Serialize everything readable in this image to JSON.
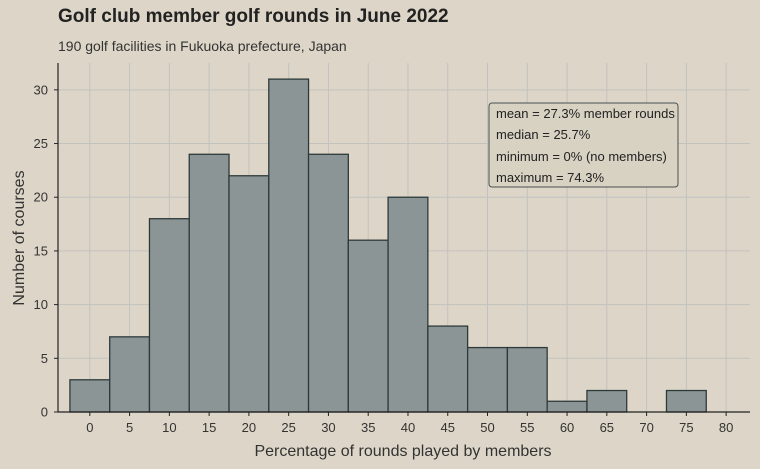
{
  "chart_data": {
    "type": "bar",
    "title": "Golf club member golf rounds in June 2022",
    "subtitle": "190 golf facilities in Fukuoka prefecture, Japan",
    "xlabel": "Percentage of rounds played by members",
    "ylabel": "Number of courses",
    "bin_width": 5,
    "bin_centers": [
      0,
      5,
      10,
      15,
      20,
      25,
      30,
      35,
      40,
      45,
      50,
      55,
      60,
      65,
      70,
      75
    ],
    "values": [
      3,
      7,
      18,
      24,
      22,
      31,
      24,
      16,
      20,
      8,
      6,
      6,
      1,
      2,
      0,
      2
    ],
    "xlim": [
      -4,
      83
    ],
    "ylim": [
      0,
      32.5
    ],
    "x_ticks": [
      0,
      5,
      10,
      15,
      20,
      25,
      30,
      35,
      40,
      45,
      50,
      55,
      60,
      65,
      70,
      75,
      80
    ],
    "y_ticks": [
      0,
      5,
      10,
      15,
      20,
      25,
      30
    ],
    "grid": true,
    "colors": {
      "bar_fill": "#8b9596",
      "bar_stroke": "#2e3a3a",
      "grid": "#c2c2bf",
      "background": "#ddd6c8"
    },
    "stats_box": [
      "mean = 27.3% member rounds",
      "median = 25.7%",
      "minimum = 0% (no members)",
      "maximum = 74.3%"
    ]
  }
}
